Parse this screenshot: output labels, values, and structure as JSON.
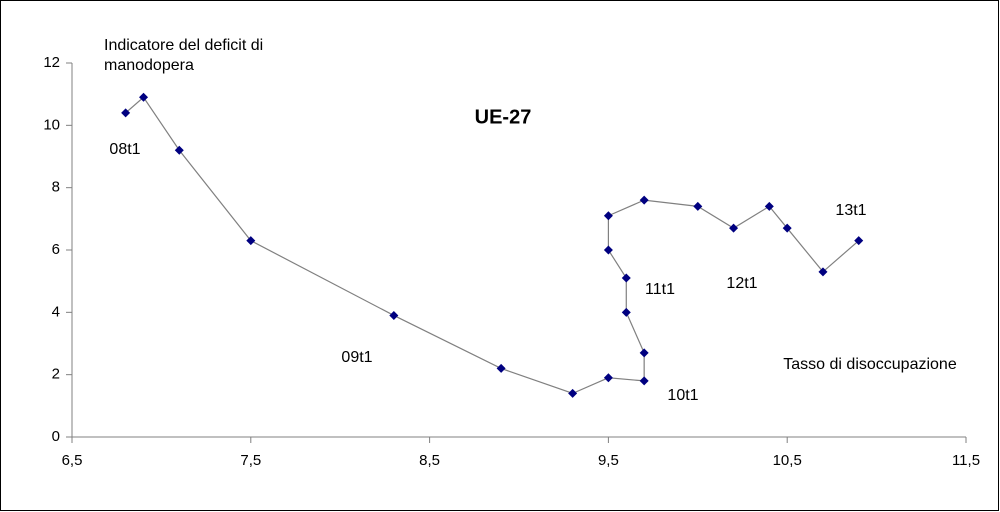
{
  "chart_data": {
    "type": "scatter",
    "title": "UE-27",
    "y_label": "Indicatore del deficit di manodopera",
    "x_label": "Tasso di disoccupazione",
    "series": [
      {
        "color": "#000080",
        "line_color": "#808080",
        "x": [
          6.8,
          6.9,
          7.1,
          7.5,
          8.3,
          8.9,
          9.3,
          9.5,
          9.7,
          9.7,
          9.6,
          9.6,
          9.5,
          9.5,
          9.7,
          10.0,
          10.2,
          10.4,
          10.5,
          10.7,
          10.9
        ],
        "values": [
          10.4,
          10.9,
          9.2,
          6.3,
          3.9,
          2.2,
          1.4,
          1.9,
          1.8,
          2.7,
          4.0,
          5.1,
          6.0,
          7.1,
          7.6,
          7.4,
          6.7,
          7.4,
          6.7,
          5.3,
          6.3
        ]
      }
    ],
    "annotations": [
      "08t1",
      "09t1",
      "10t1",
      "11t1",
      "12t1",
      "13t1"
    ],
    "xlim": [
      6.5,
      11.5
    ],
    "xticks": [
      {
        "value": 6.5,
        "label": "6,5"
      },
      {
        "value": 7.5,
        "label": "7,5"
      },
      {
        "value": 8.5,
        "label": "8,5"
      },
      {
        "value": 9.5,
        "label": "9,5"
      },
      {
        "value": 10.5,
        "label": "10,5"
      },
      {
        "value": 11.5,
        "label": "11,5"
      }
    ],
    "ylim": [
      0,
      12
    ],
    "yticks": [
      0,
      2,
      4,
      6,
      8,
      10,
      12
    ],
    "grid": false
  }
}
